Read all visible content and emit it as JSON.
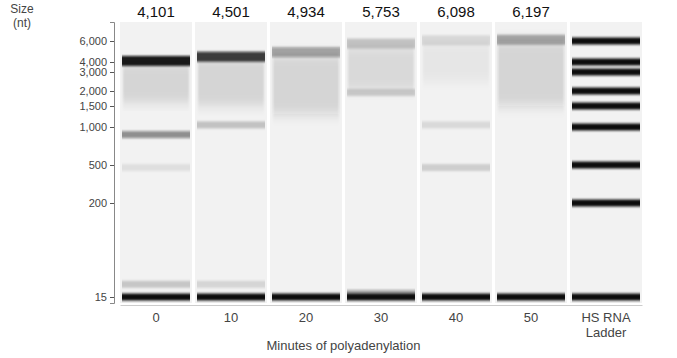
{
  "chart_data": {
    "type": "gel",
    "y_label": "Size (nt)",
    "x_label": "Minutes of polyadenylation",
    "ylim": [
      11,
      9000
    ],
    "yticks": [
      15,
      200,
      500,
      {
        "value": 1000,
        "label": "1,000"
      },
      {
        "value": 1500,
        "label": "1,500"
      },
      {
        "value": 2000,
        "label": "2,000"
      },
      {
        "value": 3000,
        "label": "3,000"
      },
      {
        "value": 4000,
        "label": "4,000"
      },
      {
        "value": 6000,
        "label": "6,000"
      }
    ],
    "data_labels": true,
    "lanes": [
      {
        "name": "0",
        "peak": {
          "value": 4101,
          "label": "4,101",
          "intensity": 0.95
        },
        "smears": [
          {
            "low": 1600,
            "high": 3900,
            "intensity": 0.12
          }
        ],
        "bands": [
          {
            "size": 900,
            "intensity": 0.45
          },
          {
            "size": 480,
            "intensity": 0.08
          },
          {
            "size": 40,
            "intensity": 0.18
          },
          {
            "size": 15,
            "intensity": 1
          }
        ]
      },
      {
        "name": "10",
        "peak": {
          "value": 4501,
          "label": "4,501",
          "intensity": 0.8
        },
        "smears": [
          {
            "low": 1500,
            "high": 4300,
            "intensity": 0.12
          }
        ],
        "bands": [
          {
            "size": 1050,
            "intensity": 0.2
          },
          {
            "size": 40,
            "intensity": 0.12
          },
          {
            "size": 15,
            "intensity": 1
          }
        ]
      },
      {
        "name": "20",
        "peak": {
          "value": 4934,
          "label": "4,934",
          "intensity": 0.35
        },
        "smears": [
          {
            "low": 1300,
            "high": 4700,
            "intensity": 0.15
          }
        ],
        "bands": [
          {
            "size": 15,
            "intensity": 1
          }
        ]
      },
      {
        "name": "30",
        "peak": {
          "value": 5753,
          "label": "5,753",
          "intensity": 0.18
        },
        "smears": [
          {
            "low": 2000,
            "high": 5500,
            "intensity": 0.1
          }
        ],
        "bands": [
          {
            "size": 1950,
            "intensity": 0.15
          },
          {
            "size": 22,
            "intensity": 0.35
          },
          {
            "size": 15,
            "intensity": 1
          }
        ]
      },
      {
        "name": "40",
        "peak": {
          "value": 6098,
          "label": "6,098",
          "intensity": 0.1
        },
        "smears": [
          {
            "low": 2500,
            "high": 5900,
            "intensity": 0.05
          }
        ],
        "bands": [
          {
            "size": 1050,
            "intensity": 0.1
          },
          {
            "size": 480,
            "intensity": 0.15
          },
          {
            "size": 15,
            "intensity": 1
          }
        ]
      },
      {
        "name": "50",
        "peak": {
          "value": 6197,
          "label": "6,197",
          "intensity": 0.3
        },
        "smears": [
          {
            "low": 1500,
            "high": 6000,
            "intensity": 0.15
          }
        ],
        "bands": [
          {
            "size": 15,
            "intensity": 1
          }
        ]
      },
      {
        "name": "HS RNA Ladder",
        "smears": [],
        "bands": [
          {
            "size": 6000,
            "intensity": 1
          },
          {
            "size": 4000,
            "intensity": 1
          },
          {
            "size": 3000,
            "intensity": 1
          },
          {
            "size": 2000,
            "intensity": 1
          },
          {
            "size": 1500,
            "intensity": 1
          },
          {
            "size": 1000,
            "intensity": 1
          },
          {
            "size": 500,
            "intensity": 1
          },
          {
            "size": 200,
            "intensity": 1
          },
          {
            "size": 15,
            "intensity": 1
          }
        ]
      }
    ]
  }
}
